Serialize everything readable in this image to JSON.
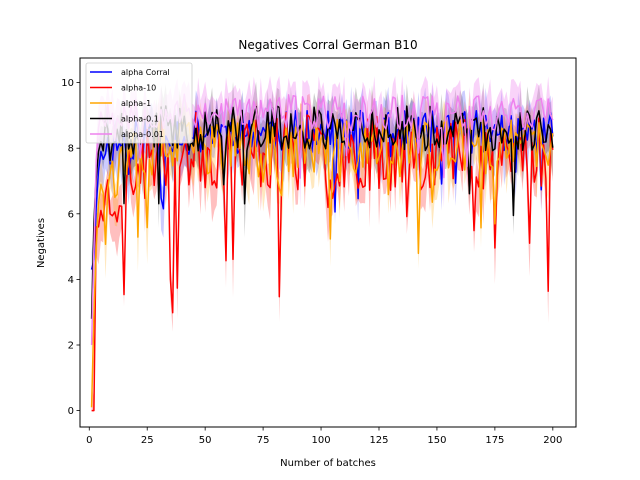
{
  "chart_data": {
    "type": "line",
    "title": "Negatives Corral German B10",
    "xlabel": "Number of batches",
    "ylabel": "Negatives",
    "xlim": [
      -4,
      210
    ],
    "ylim": [
      -0.5,
      10.75
    ],
    "xticks": [
      0,
      25,
      50,
      75,
      100,
      125,
      150,
      175,
      200
    ],
    "yticks": [
      0,
      2,
      4,
      6,
      8,
      10
    ],
    "grid": false,
    "legend_position": "top-left",
    "x_range": [
      1,
      200
    ],
    "series": [
      {
        "name": "alpha Corral",
        "color": "#0000ff",
        "band_opacity": 0.2,
        "start": [
          4.3,
          4.6,
          6.2,
          7.3,
          7.9
        ],
        "steady_mean": 8.5,
        "steady_spread": 0.65,
        "seed": 11
      },
      {
        "name": "alpha-10",
        "color": "#ff0000",
        "band_opacity": 0.25,
        "start": [
          0.0,
          0.0,
          5.6,
          5.6,
          6.1
        ],
        "steady_mean": 7.9,
        "steady_spread": 1.2,
        "seed": 23
      },
      {
        "name": "alpha-1",
        "color": "#ffa500",
        "band_opacity": 0.25,
        "start": [
          0.1,
          2.9,
          5.0,
          6.3,
          6.9
        ],
        "steady_mean": 8.0,
        "steady_spread": 0.9,
        "seed": 37
      },
      {
        "name": "alpha-0.1",
        "color": "#000000",
        "band_opacity": 0.2,
        "start": [
          2.8,
          5.7,
          7.1,
          7.9,
          8.2
        ],
        "steady_mean": 8.6,
        "steady_spread": 0.7,
        "seed": 41
      },
      {
        "name": "alpha-0.01",
        "color": "#ee82ee",
        "band_opacity": 0.35,
        "start": [
          2.0,
          4.9,
          7.6,
          8.6,
          9.1
        ],
        "steady_mean": 9.1,
        "steady_spread": 0.55,
        "seed": 53
      }
    ]
  }
}
